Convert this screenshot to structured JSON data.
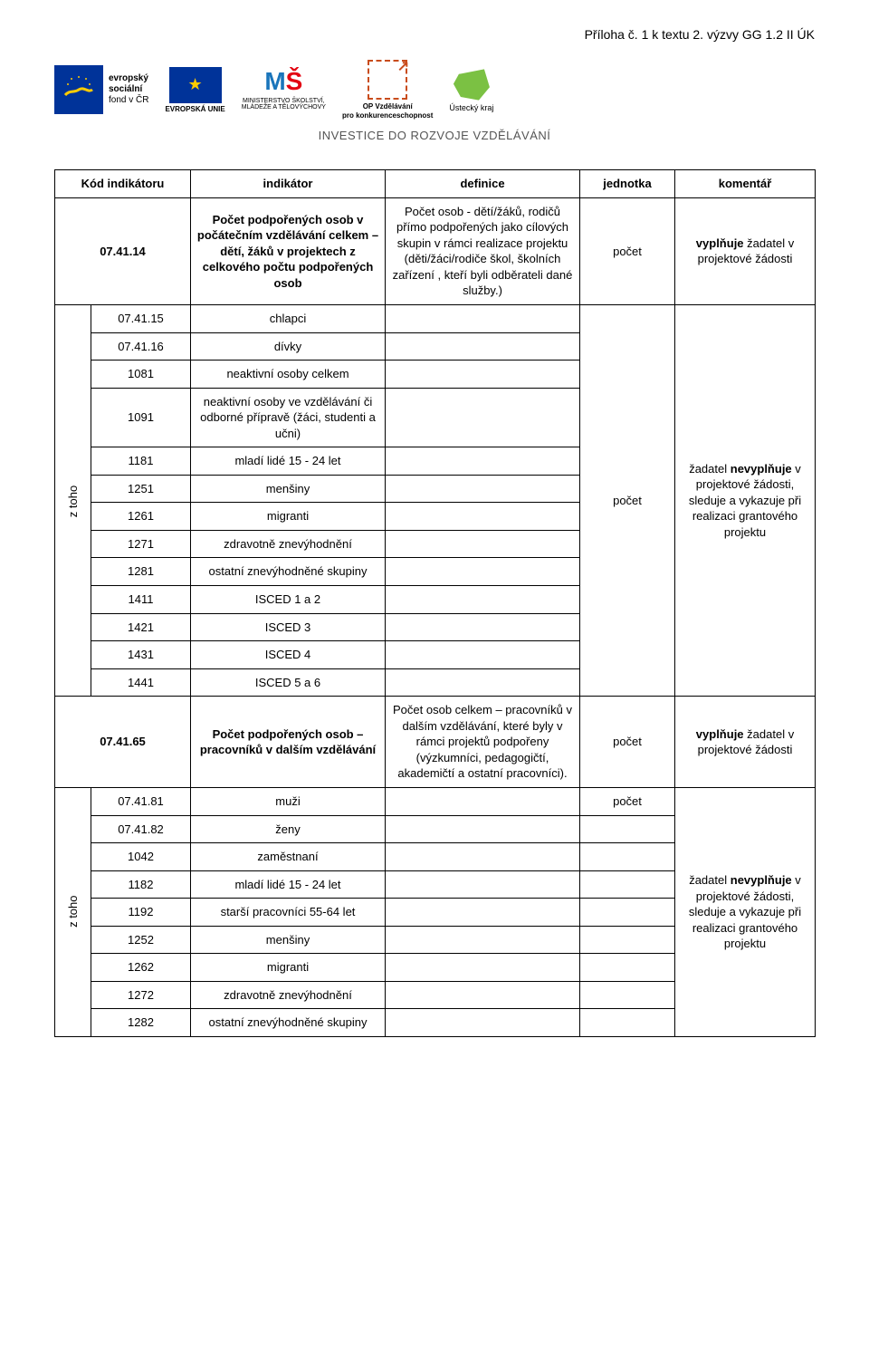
{
  "header_line": "Příloha č. 1 k textu 2. výzvy GG 1.2 II ÚK",
  "logos": {
    "esf_text_1": "evropský",
    "esf_text_2": "sociální",
    "esf_text_3": "fond v ČR",
    "eu_label": "EVROPSKÁ UNIE",
    "msmt_line1": "MINISTERSTVO ŠKOLSTVÍ,",
    "msmt_line2": "MLÁDEŽE A TĚLOVÝCHOVY",
    "op_line1": "OP Vzdělávání",
    "op_line2": "pro konkurenceschopnost",
    "kraj_label": "Ústecký kraj"
  },
  "tagline": "INVESTICE DO ROZVOJE VZDĚLÁVÁNÍ",
  "table": {
    "head": {
      "c1": "Kód indikátoru",
      "c2": "indikátor",
      "c3": "definice",
      "c4": "jednotka",
      "c5": "komentář"
    },
    "z_toho": "z toho",
    "r1": {
      "code": "07.41.14",
      "indicator": "Počet podpořených osob v počátečním vzdělávání celkem – dětí, žáků v projektech z celkového počtu podpořených osob",
      "definition": "Počet osob - dětí/žáků, rodičů přímo podpořených jako cílových skupin v rámci realizace projektu (děti/žáci/rodiče škol, školních zařízení , kteří byli odběrateli dané služby.)",
      "unit": "počet",
      "comment": "vyplňuje žadatel v projektové žádosti"
    },
    "group1": {
      "unit": "počet",
      "comment": "žadatel nevyplňuje v projektové žádosti, sleduje a vykazuje při realizaci grantového projektu",
      "rows": [
        {
          "code": "07.41.15",
          "indicator": "chlapci"
        },
        {
          "code": "07.41.16",
          "indicator": "dívky"
        },
        {
          "code": "1081",
          "indicator": "neaktivní osoby celkem"
        },
        {
          "code": "1091",
          "indicator": "neaktivní osoby ve vzdělávání či odborné přípravě (žáci, studenti a učni)"
        },
        {
          "code": "1181",
          "indicator": "mladí lidé 15 - 24 let"
        },
        {
          "code": "1251",
          "indicator": "menšiny"
        },
        {
          "code": "1261",
          "indicator": "migranti"
        },
        {
          "code": "1271",
          "indicator": "zdravotně znevýhodnění"
        },
        {
          "code": "1281",
          "indicator": "ostatní znevýhodněné skupiny"
        },
        {
          "code": "1411",
          "indicator": "ISCED 1 a 2"
        },
        {
          "code": "1421",
          "indicator": "ISCED 3"
        },
        {
          "code": "1431",
          "indicator": "ISCED 4"
        },
        {
          "code": "1441",
          "indicator": "ISCED 5 a 6"
        }
      ]
    },
    "r2": {
      "code": "07.41.65",
      "indicator": "Počet podpořených osob – pracovníků v dalším vzdělávání",
      "definition": "Počet osob celkem – pracovníků v dalším vzdělávání, které byly v rámci projektů podpořeny (výzkumníci, pedagogičtí, akademičtí a ostatní pracovníci).",
      "unit": "počet",
      "comment": "vyplňuje žadatel v projektové žádosti"
    },
    "group2": {
      "unit": "počet",
      "comment": "žadatel nevyplňuje v projektové žádosti, sleduje a vykazuje při realizaci grantového projektu",
      "rows": [
        {
          "code": "07.41.81",
          "indicator": "muži"
        },
        {
          "code": "07.41.82",
          "indicator": "ženy"
        },
        {
          "code": "1042",
          "indicator": "zaměstnaní"
        },
        {
          "code": "1182",
          "indicator": "mladí lidé 15 - 24 let"
        },
        {
          "code": "1192",
          "indicator": "starší pracovníci 55-64 let"
        },
        {
          "code": "1252",
          "indicator": "menšiny"
        },
        {
          "code": "1262",
          "indicator": "migranti"
        },
        {
          "code": "1272",
          "indicator": "zdravotně znevýhodnění"
        },
        {
          "code": "1282",
          "indicator": "ostatní znevýhodněné skupiny"
        }
      ]
    }
  },
  "style": {
    "vyplnuje_keyword": "vyplňuje",
    "nevyplnuje_keyword": "nevyplňuje"
  }
}
